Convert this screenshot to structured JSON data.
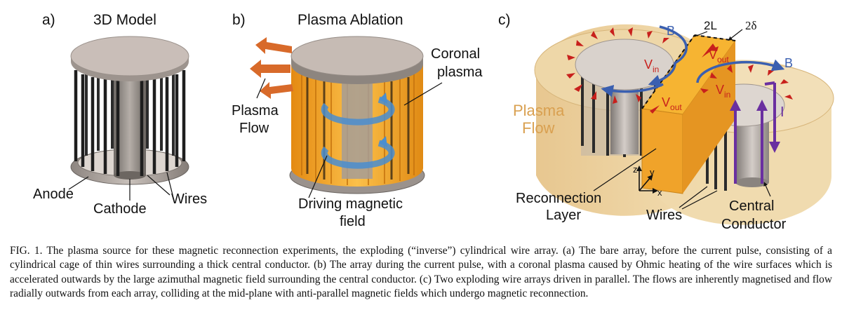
{
  "panel_a": {
    "letter": "a)",
    "title": "3D Model",
    "labels": {
      "anode": "Anode",
      "cathode": "Cathode",
      "wires": "Wires"
    }
  },
  "panel_b": {
    "letter": "b)",
    "title": "Plasma Ablation",
    "labels": {
      "coronal_1": "Coronal",
      "coronal_2": "plasma",
      "flow_1": "Plasma",
      "flow_2": "Flow",
      "driving_1": "Driving magnetic",
      "driving_2": "field"
    }
  },
  "panel_c": {
    "letter": "c)",
    "labels": {
      "two_l": "2L",
      "two_delta": "2δ",
      "b": "B",
      "v": "V",
      "in": "in",
      "out": "out",
      "plasma_flow_1": "Plasma",
      "plasma_flow_2": "Flow",
      "current": "I",
      "axis_z": "z",
      "axis_y": "y",
      "axis_x": "x",
      "reconnection_1": "Reconnection",
      "reconnection_2": "Layer",
      "wires": "Wires",
      "central_1": "Central",
      "central_2": "Conductor"
    }
  },
  "colors": {
    "wire": "#2b2b2b",
    "disc": "#c9beb8",
    "orange": "#f4a62a",
    "blue": "#3a5fb0",
    "red": "#c8201c",
    "purple": "#6a2fa0",
    "flow_text": "#d9a050",
    "arrow_orange": "#d86a2a"
  },
  "caption": "FIG. 1. The plasma source for these magnetic reconnection experiments, the exploding (“inverse”) cylindrical wire array. (a) The bare array, before the current pulse, consisting of a cylindrical cage of thin wires surrounding a thick central conductor. (b) The array during the current pulse, with a coronal plasma caused by Ohmic heating of the wire surfaces which is accelerated outwards by the large azimuthal magnetic field surrounding the central conductor. (c) Two exploding wire arrays driven in parallel. The flows are inherently magnetised and flow radially outwards from each array, colliding at the mid-plane with anti-parallel magnetic fields which undergo magnetic reconnection."
}
